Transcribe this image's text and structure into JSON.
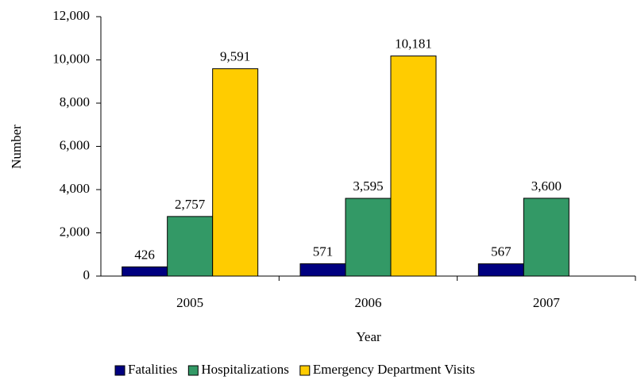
{
  "chart_data": {
    "type": "bar",
    "y_label": "Number",
    "x_label": "Year",
    "categories": [
      "2005",
      "2006",
      "2007"
    ],
    "series": [
      {
        "name": "Fatalities",
        "color": "#000080",
        "values": [
          426,
          571,
          567
        ],
        "value_labels": [
          "426",
          "571",
          "567"
        ]
      },
      {
        "name": "Hospitalizations",
        "color": "#339966",
        "values": [
          2757,
          3595,
          3600
        ],
        "value_labels": [
          "2,757",
          "3,595",
          "3,600"
        ]
      },
      {
        "name": "Emergency Department Visits",
        "color": "#ffcc00",
        "values": [
          9591,
          10181,
          null
        ],
        "value_labels": [
          "9,591",
          "10,181",
          null
        ]
      }
    ],
    "ylim": [
      0,
      12000
    ],
    "yticks": [
      0,
      {
        "value": 2000,
        "label": "2,000"
      },
      {
        "value": 4000,
        "label": "4,000"
      },
      {
        "value": 6000,
        "label": "6,000"
      },
      {
        "value": 8000,
        "label": "8,000"
      },
      {
        "value": 10000,
        "label": "10,000"
      },
      {
        "value": 12000,
        "label": "12,000"
      }
    ],
    "legend": "bottom"
  }
}
